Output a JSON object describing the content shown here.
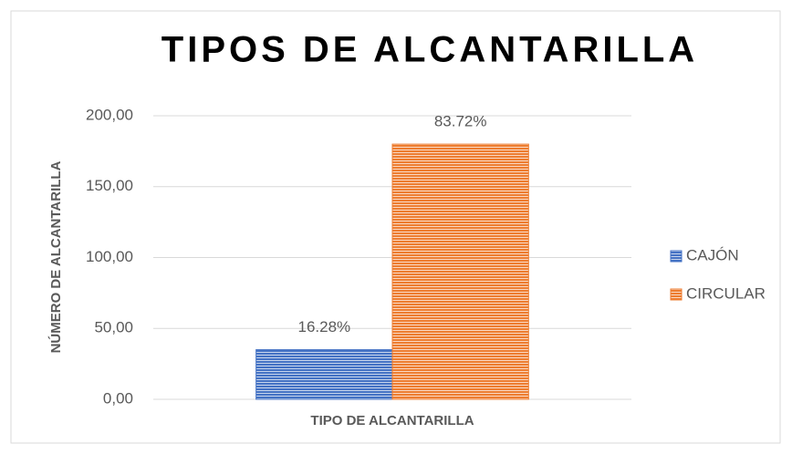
{
  "chart_data": {
    "type": "bar",
    "title": "TIPOS DE ALCANTARILLA",
    "x_label": "TIPO DE ALCANTARILLA",
    "y_label": "NÚMERO DE ALCANTARILLA",
    "categories": [
      null
    ],
    "series": [
      {
        "name": "CAJÓN",
        "color": "#4472c4",
        "values": [
          35
        ],
        "percent_labels": [
          "16.28%"
        ]
      },
      {
        "name": "CIRCULAR",
        "color": "#ed7d31",
        "values": [
          180
        ],
        "percent_labels": [
          "83.72%"
        ]
      }
    ],
    "ylim": [
      0,
      200
    ],
    "yticks": [
      {
        "value": 0,
        "label": "0,00"
      },
      {
        "value": 50,
        "label": "50,00"
      },
      {
        "value": 100,
        "label": "100,00"
      },
      {
        "value": 150,
        "label": "150,00"
      },
      {
        "value": 200,
        "label": "200,00"
      }
    ],
    "grid": true,
    "legend": "right"
  }
}
